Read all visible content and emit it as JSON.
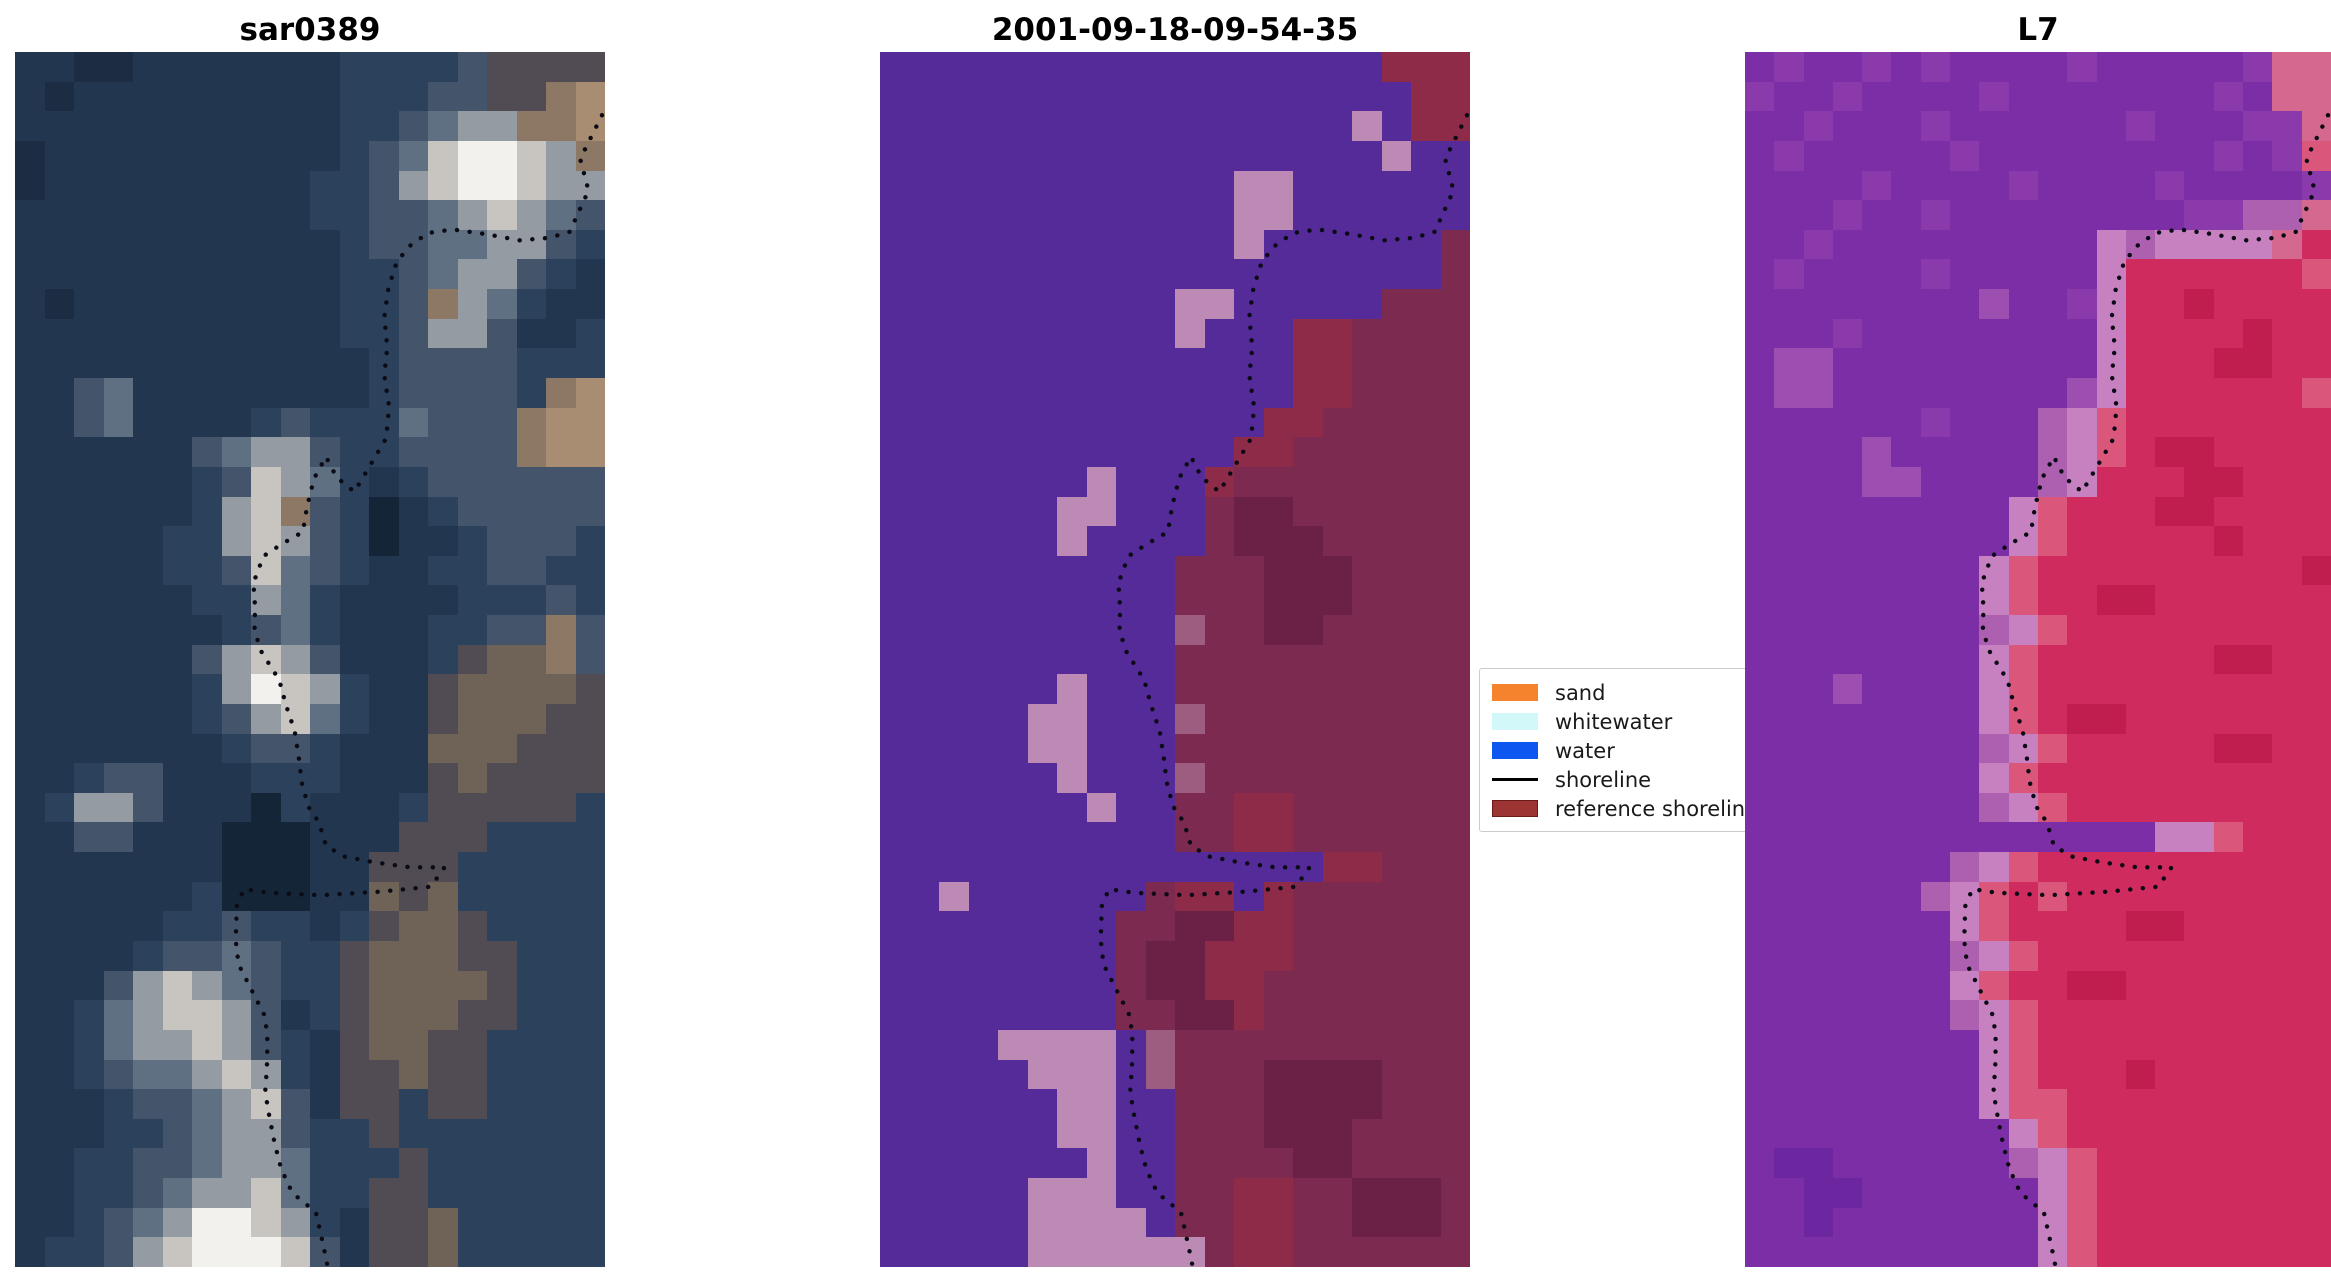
{
  "chart_data": {
    "type": "heatmap",
    "subtype": "satellite-image-triptych",
    "figure_background": "#ffffff",
    "grid_cols": 20,
    "grid_rows": 41,
    "panels": [
      {
        "title": "sar0389",
        "palette": {
          "a": "#1b2c43",
          "b": "#223650",
          "c": "#2c415b",
          "d": "#44546a",
          "e": "#5f7082",
          "f": "#949ba3",
          "g": "#c8c5c0",
          "h": "#f3f1ee",
          "i": "#8c7864",
          "j": "#a98d72",
          "k": "#6f6257",
          "l": "#514b54",
          "m": "#3d4356",
          "n": "#152538"
        },
        "rows": [
          "bbaabbbbbbbccccdllll",
          "babbbbbbbbbcccddllij",
          "bbbbbbbbbbbccdeffiij",
          "abbbbbbbbbbcdeghhgfi",
          "abbbbbbbbbccdfghhgff",
          "bbbbbbbbbbccddefgfed",
          "bbbbbbbbbbbcddeeffdc",
          "bbbbbbbbbbbccdeffdcb",
          "babbbbbbbbbccdifecbb",
          "bbbbbbbbbbbccdffdbbc",
          "bbbbbbbbbbbbcddddccc",
          "bbdebbbbbbbbcddddcij",
          "bbdebbbbcdcccedddijj",
          "bbbbbbdeffdccddddijj",
          "bbbbbbcdgfecbcdddddd",
          "bbbbbbcfgidcnbcddddd",
          "bbbbbccfgfdcnbbcdddc",
          "bbbbbccdgedcbbccddcc",
          "bbbbbbccfecbbbbcccdc",
          "bbbbbbbcdecbbbccddid",
          "bbbbbbdfgfdbbbclkkid",
          "bbbbbbcfhgfcbblkkkkl",
          "bbbbbbcdfgecbblkkkll",
          "bbbbbbbcddcbbbkkklll",
          "bbcddbbbcccbbblkllll",
          "bcffdbbbncbbbclllllc",
          "bbddbbbnnnbbblllcccc",
          "bbbbbbbnnnbblllccccc",
          "bbbbbbcnnnbbklkccccc",
          "bbbbbccdccbclkklcccc",
          "bbbbcddedcclkkkllccc",
          "bbbdfgfedcclkkkklccc",
          "bbcefggfdbclkkkllccc",
          "bbceffgfdcblkkllcccc",
          "bbcdeefgfcbllkllcccc",
          "bbbcddefgdbllcllcccc",
          "bbbccdeffdcclccccccc",
          "bbccddeffeccclcccccc",
          "bbccdeffgeccllcccccc",
          "bbcdefhhgfcbllkccccc",
          "bccdfghhhgdbllkccccc"
        ]
      },
      {
        "title": "2001-09-18-09-54-35",
        "palette": {
          "W": "#552a99",
          "S": "#bd8ab5",
          "1": "#7c2a50",
          "2": "#8e2b49",
          "3": "#6b2145",
          "4": "#9d5d80"
        },
        "rows": [
          "WWWWWWWWWWWWWWWWW222",
          "WWWWWWWWWWWWWWWWWW22",
          "WWWWWWWWWWWWWWWWSW22",
          "WWWWWWWWWWWWWWWWWSWW",
          "WWWWWWWWWWWWSSWWWWWW",
          "WWWWWWWWWWWWSSWWWWWW",
          "WWWWWWWWWWWWSWWWWWW1",
          "WWWWWWWWWWWWWWWWWWW1",
          "WWWWWWWWWWSSWWWWW111",
          "WWWWWWWWWWSWWW221111",
          "WWWWWWWWWWWWWW221111",
          "WWWWWWWWWWWWWW221111",
          "WWWWWWWWWWWWW2211111",
          "WWWWWWWWWWWW22111111",
          "WWWWWWWSWWW211111111",
          "WWWWWWSSWWW133111111",
          "WWWWWWSWWWW133311111",
          "WWWWWWWWWW1113331111",
          "WWWWWWWWWW1113331111",
          "WWWWWWWWWW4113311111",
          "WWWWWWWWWW1111111111",
          "WWWWWWSWWW1111111111",
          "WWWWWSSWWW4111111111",
          "WWWWWSSWWW1111111111",
          "WWWWWWSWWW4111111111",
          "WWWWWWWSWW1122111111",
          "WWWWWWWWWW1122111111",
          "WWWWWWWWWWWWWWW22111",
          "WWSWWWWWW122W2111111",
          "WWWWWWWW113322111111",
          "WWWWWWWW133222111111",
          "WWWWWWWW133221111111",
          "WWWWWWWW113321111111",
          "WWWWSSSSW41111111111",
          "WWWWWSSSW41113333111",
          "WWWWWWSSWW1113333111",
          "WWWWWWSSWW1113331111",
          "WWWWWWWSWW1111331111",
          "WWWWWSSSWW1122113331",
          "WWWWWSSSSW1122113331",
          "WWWWWSSSSSS122111111"
        ]
      },
      {
        "title": "L7",
        "palette": {
          "p": "#7b2ea5",
          "q": "#8b3aab",
          "r": "#6c27a0",
          "s": "#9c4fb0",
          "t": "#ac60af",
          "u": "#c781c1",
          "v": "#d4688e",
          "x": "#d02b5e",
          "y": "#bf1e4f",
          "z": "#da567b"
        },
        "rows": [
          "pqppqpqppppqpppppqvv",
          "qppqppppqpppppppqpvv",
          "ppqpppqppppppqpppqqv",
          "pqpppppqppppppppqpqz",
          "ppppqppppqppppqppppq",
          "pppqppqppppppppqqttv",
          "ppqppppppppputuuuuvx",
          "pqppppqpppppuxxxxxxz",
          "ppppppppsppquxxyxxxx",
          "pppqppppppppuxxxxyxx",
          "psspppppppppuxxxyyxx",
          "pssppppppppsuxxxxxxz",
          "ppppppqppptuzxxxxxxx",
          "ppppsppppptuzxyyxxxx",
          "ppppsspppptuxxxyyxxx",
          "pppppppppuzxxxyyxxxx",
          "pppppppppuzxxxxxyxxx",
          "ppppppppuzxxxxxxxxxy",
          "ppppppppuzxxyyxxxxxx",
          "pppppppptuzxxxxxxxxx",
          "ppppppppuzxxxxxxyyxx",
          "pppsppppuzxxxxxxxxxx",
          "ppppppppuzxyyxxxxxxx",
          "pppppppptuzxxxxxyyxx",
          "ppppppppuzxxxxxxxxxx",
          "pppppppptuzxxxxxxxxx",
          "ppppppppppppppuuzxxx",
          "ppppppptuzxxxxxxxxxx",
          "pppppptuzxzxxxxxxxxx",
          "pppppppuzxxxxyyxxxxx",
          "ppppppptuzxxxxxxxxxx",
          "pppppppuzxxyyxxxxxxx",
          "ppppppptuzxxxxxxxxxx",
          "ppppppppuzxxxxxxxxxx",
          "ppppppppuzxxxyxxxxxx",
          "ppppppppuzzxxxxxxxxx",
          "pppppppppuzxxxxxxxxx",
          "prrpppppptuzxxxxxxxx",
          "pprrppppppuzxxxxxxxx",
          "pprpppppppuzxxxxxxxx",
          "ppppppppppuzxxxxxxxx"
        ]
      }
    ],
    "legend": {
      "background": "#ffffff",
      "border_color": "#cccccc",
      "entries": [
        {
          "label": "sand",
          "swatch": "patch",
          "color": "#f5822d"
        },
        {
          "label": "whitewater",
          "swatch": "patch",
          "color": "#d2f8fa"
        },
        {
          "label": "water",
          "swatch": "patch",
          "color": "#0b57f0"
        },
        {
          "label": "shoreline",
          "swatch": "line",
          "color": "#000000"
        },
        {
          "label": "reference shoreline",
          "swatch": "patch",
          "color": "#9c3433",
          "edge": "#6b1a1a"
        }
      ]
    },
    "shoreline": {
      "color": "#0b0b15",
      "dot_diameter": 4.4,
      "dot_spacing": 12.6,
      "path_normalized": [
        [
          0.995,
          0.052
        ],
        [
          0.958,
          0.088
        ],
        [
          0.972,
          0.114
        ],
        [
          0.94,
          0.148
        ],
        [
          0.905,
          0.153
        ],
        [
          0.855,
          0.155
        ],
        [
          0.8,
          0.15
        ],
        [
          0.742,
          0.146
        ],
        [
          0.7,
          0.149
        ],
        [
          0.668,
          0.16
        ],
        [
          0.647,
          0.173
        ],
        [
          0.633,
          0.194
        ],
        [
          0.626,
          0.218
        ],
        [
          0.631,
          0.243
        ],
        [
          0.626,
          0.266
        ],
        [
          0.634,
          0.292
        ],
        [
          0.629,
          0.318
        ],
        [
          0.601,
          0.341
        ],
        [
          0.575,
          0.362
        ],
        [
          0.545,
          0.35
        ],
        [
          0.527,
          0.333
        ],
        [
          0.507,
          0.351
        ],
        [
          0.495,
          0.374
        ],
        [
          0.488,
          0.395
        ],
        [
          0.452,
          0.405
        ],
        [
          0.421,
          0.415
        ],
        [
          0.404,
          0.437
        ],
        [
          0.407,
          0.457
        ],
        [
          0.406,
          0.476
        ],
        [
          0.417,
          0.493
        ],
        [
          0.448,
          0.517
        ],
        [
          0.459,
          0.537
        ],
        [
          0.474,
          0.559
        ],
        [
          0.481,
          0.581
        ],
        [
          0.486,
          0.601
        ],
        [
          0.497,
          0.621
        ],
        [
          0.515,
          0.634
        ],
        [
          0.527,
          0.653
        ],
        [
          0.556,
          0.662
        ],
        [
          0.61,
          0.667
        ],
        [
          0.67,
          0.671
        ],
        [
          0.728,
          0.671
        ],
        [
          0.705,
          0.687
        ],
        [
          0.62,
          0.691
        ],
        [
          0.52,
          0.694
        ],
        [
          0.43,
          0.692
        ],
        [
          0.388,
          0.689
        ],
        [
          0.376,
          0.703
        ],
        [
          0.374,
          0.731
        ],
        [
          0.379,
          0.751
        ],
        [
          0.403,
          0.774
        ],
        [
          0.424,
          0.794
        ],
        [
          0.428,
          0.814
        ],
        [
          0.427,
          0.836
        ],
        [
          0.424,
          0.856
        ],
        [
          0.431,
          0.876
        ],
        [
          0.44,
          0.898
        ],
        [
          0.451,
          0.919
        ],
        [
          0.47,
          0.939
        ],
        [
          0.51,
          0.955
        ],
        [
          0.518,
          0.972
        ],
        [
          0.526,
          0.99
        ],
        [
          0.53,
          1.0
        ]
      ]
    }
  }
}
